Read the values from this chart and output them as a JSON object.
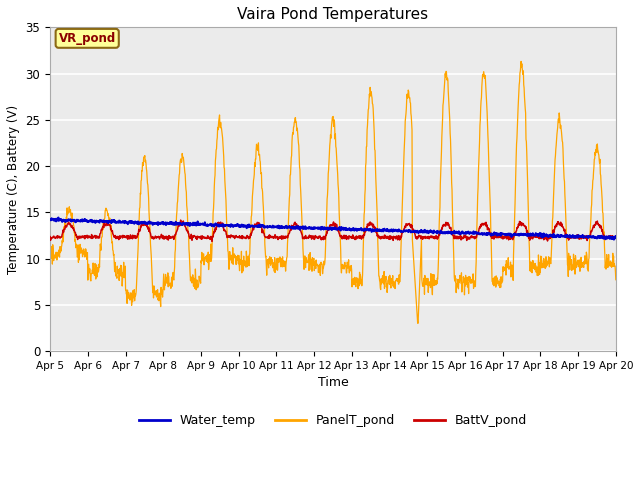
{
  "title": "Vaira Pond Temperatures",
  "ylabel": "Temperature (C), Battery (V)",
  "xlabel": "Time",
  "annotation_text": "VR_pond",
  "annotation_box_color": "#FFFF99",
  "annotation_border_color": "#8B6914",
  "annotation_text_color": "#8B0000",
  "ylim": [
    0,
    35
  ],
  "yticks": [
    0,
    5,
    10,
    15,
    20,
    25,
    30,
    35
  ],
  "xtick_labels": [
    "Apr 5",
    "Apr 6",
    "Apr 7",
    "Apr 8",
    "Apr 9",
    "Apr 10",
    "Apr 11",
    "Apr 12",
    "Apr 13",
    "Apr 14",
    "Apr 15",
    "Apr 16",
    "Apr 17",
    "Apr 18",
    "Apr 19",
    "Apr 20"
  ],
  "water_color": "#0000CC",
  "panel_color": "#FFA500",
  "batt_color": "#CC0000",
  "bg_color": "#EBEBEB",
  "grid_color": "#FFFFFF",
  "legend_labels": [
    "Water_temp",
    "PanelT_pond",
    "BattV_pond"
  ],
  "figsize": [
    6.4,
    4.8
  ],
  "dpi": 100
}
